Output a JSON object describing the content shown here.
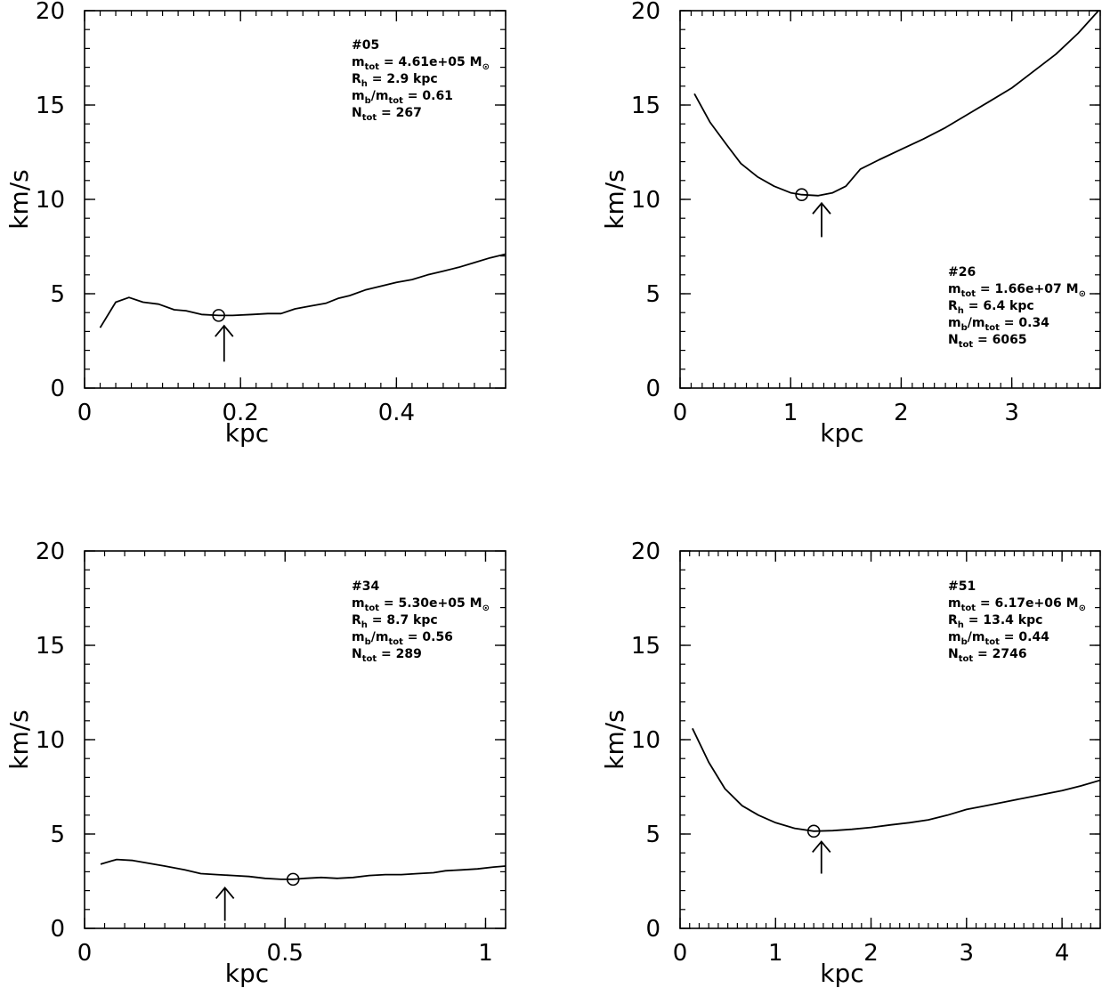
{
  "chart_data": [
    {
      "type": "line",
      "xlabel": "kpc",
      "ylabel": "km/s",
      "xlim": [
        0,
        0.54
      ],
      "ylim": [
        0,
        20
      ],
      "xticks": [
        0,
        0.2,
        0.4
      ],
      "xtick_labels": [
        "0",
        "0.2",
        "0.4"
      ],
      "xminor_step": 0.02,
      "yticks": [
        0,
        5,
        10,
        15,
        20
      ],
      "ytick_labels": [
        "0",
        "5",
        "10",
        "15",
        "20"
      ],
      "yminor_step": 1,
      "x": [
        0.02,
        0.04,
        0.057,
        0.075,
        0.095,
        0.115,
        0.13,
        0.15,
        0.172,
        0.19,
        0.215,
        0.235,
        0.252,
        0.27,
        0.29,
        0.31,
        0.325,
        0.34,
        0.36,
        0.38,
        0.4,
        0.42,
        0.44,
        0.46,
        0.48,
        0.5,
        0.52,
        0.54
      ],
      "y": [
        3.2,
        4.55,
        4.8,
        4.55,
        4.45,
        4.15,
        4.1,
        3.9,
        3.85,
        3.85,
        3.9,
        3.95,
        3.95,
        4.2,
        4.35,
        4.5,
        4.75,
        4.9,
        5.2,
        5.4,
        5.6,
        5.75,
        6.0,
        6.2,
        6.4,
        6.65,
        6.9,
        7.1
      ],
      "min_marker": {
        "x": 0.172,
        "y": 3.85
      },
      "arrow": {
        "x": 0.179,
        "y_tip": 3.3,
        "y_tail": 1.4
      },
      "annotation": {
        "id_label": "#05",
        "m_tot": "m",
        "m_tot_sub": "tot",
        "m_tot_value": " = 4.61e+05 M",
        "m_tot_unit_sub": "⊙",
        "rh": "R",
        "rh_sub": "h",
        "rh_value": " = 2.9 kpc",
        "ratio_num": "m",
        "ratio_num_sub": "b",
        "ratio_slash": "/m",
        "ratio_den_sub": "tot",
        "ratio_value": " = 0.61",
        "n": "N",
        "n_sub": "tot",
        "n_value": " = 267"
      },
      "annotation_position": "top-right"
    },
    {
      "type": "line",
      "xlabel": "kpc",
      "ylabel": "km/s",
      "xlim": [
        0,
        3.8
      ],
      "ylim": [
        0,
        20
      ],
      "xticks": [
        0,
        1,
        2,
        3
      ],
      "xtick_labels": [
        "0",
        "1",
        "2",
        "3"
      ],
      "xminor_step": 0.1,
      "yticks": [
        0,
        5,
        10,
        15,
        20
      ],
      "ytick_labels": [
        "0",
        "5",
        "10",
        "15",
        "20"
      ],
      "yminor_step": 1,
      "x": [
        0.13,
        0.27,
        0.42,
        0.55,
        0.7,
        0.85,
        1.0,
        1.1,
        1.25,
        1.38,
        1.5,
        1.63,
        1.8,
        2.0,
        2.2,
        2.4,
        2.6,
        2.8,
        3.0,
        3.2,
        3.4,
        3.6,
        3.8
      ],
      "y": [
        15.6,
        14.1,
        12.9,
        11.9,
        11.2,
        10.7,
        10.35,
        10.25,
        10.2,
        10.35,
        10.7,
        11.6,
        12.1,
        12.65,
        13.2,
        13.8,
        14.5,
        15.2,
        15.9,
        16.8,
        17.7,
        18.8,
        20.1
      ],
      "min_marker": {
        "x": 1.1,
        "y": 10.25
      },
      "arrow": {
        "x": 1.28,
        "y_tip": 9.8,
        "y_tail": 8.0
      },
      "annotation": {
        "id_label": "#26",
        "m_tot": "m",
        "m_tot_sub": "tot",
        "m_tot_value": " = 1.66e+07 M",
        "m_tot_unit_sub": "⊙",
        "rh": "R",
        "rh_sub": "h",
        "rh_value": " = 6.4 kpc",
        "ratio_num": "m",
        "ratio_num_sub": "b",
        "ratio_slash": "/m",
        "ratio_den_sub": "tot",
        "ratio_value": " = 0.34",
        "n": "N",
        "n_sub": "tot",
        "n_value": " = 6065"
      },
      "annotation_position": "bottom-right"
    },
    {
      "type": "line",
      "xlabel": "kpc",
      "ylabel": "km/s",
      "xlim": [
        0,
        1.05
      ],
      "ylim": [
        0,
        20
      ],
      "xticks": [
        0,
        0.5,
        1
      ],
      "xtick_labels": [
        "0",
        "0.5",
        "1"
      ],
      "xminor_step": 0.05,
      "yticks": [
        0,
        5,
        10,
        15,
        20
      ],
      "ytick_labels": [
        "0",
        "5",
        "10",
        "15",
        "20"
      ],
      "yminor_step": 1,
      "x": [
        0.04,
        0.08,
        0.12,
        0.16,
        0.2,
        0.25,
        0.29,
        0.33,
        0.37,
        0.41,
        0.45,
        0.49,
        0.52,
        0.55,
        0.59,
        0.63,
        0.67,
        0.71,
        0.75,
        0.79,
        0.83,
        0.87,
        0.9,
        0.94,
        0.98,
        1.02,
        1.05
      ],
      "y": [
        3.4,
        3.65,
        3.6,
        3.45,
        3.3,
        3.1,
        2.9,
        2.85,
        2.8,
        2.75,
        2.65,
        2.6,
        2.6,
        2.65,
        2.7,
        2.65,
        2.7,
        2.8,
        2.85,
        2.85,
        2.9,
        2.95,
        3.05,
        3.1,
        3.15,
        3.25,
        3.3
      ],
      "min_marker": {
        "x": 0.52,
        "y": 2.6
      },
      "arrow": {
        "x": 0.35,
        "y_tip": 2.15,
        "y_tail": 0.4
      },
      "annotation": {
        "id_label": "#34",
        "m_tot": "m",
        "m_tot_sub": "tot",
        "m_tot_value": " = 5.30e+05 M",
        "m_tot_unit_sub": "⊙",
        "rh": "R",
        "rh_sub": "h",
        "rh_value": " = 8.7 kpc",
        "ratio_num": "m",
        "ratio_num_sub": "b",
        "ratio_slash": "/m",
        "ratio_den_sub": "tot",
        "ratio_value": " = 0.56",
        "n": "N",
        "n_sub": "tot",
        "n_value": " = 289"
      },
      "annotation_position": "top-right"
    },
    {
      "type": "line",
      "xlabel": "kpc",
      "ylabel": "km/s",
      "xlim": [
        0,
        4.4
      ],
      "ylim": [
        0,
        20
      ],
      "xticks": [
        0,
        1,
        2,
        3,
        4
      ],
      "xtick_labels": [
        "0",
        "1",
        "2",
        "3",
        "4"
      ],
      "xminor_step": 0.1,
      "yticks": [
        0,
        5,
        10,
        15,
        20
      ],
      "ytick_labels": [
        "0",
        "5",
        "10",
        "15",
        "20"
      ],
      "yminor_step": 1,
      "x": [
        0.13,
        0.3,
        0.47,
        0.65,
        0.82,
        1.0,
        1.2,
        1.4,
        1.6,
        1.8,
        2.0,
        2.2,
        2.4,
        2.6,
        2.8,
        3.0,
        3.2,
        3.4,
        3.6,
        3.8,
        4.0,
        4.2,
        4.4
      ],
      "y": [
        10.6,
        8.8,
        7.4,
        6.5,
        6.0,
        5.6,
        5.3,
        5.15,
        5.18,
        5.25,
        5.35,
        5.48,
        5.6,
        5.75,
        6.0,
        6.3,
        6.5,
        6.7,
        6.9,
        7.1,
        7.3,
        7.55,
        7.85
      ],
      "min_marker": {
        "x": 1.4,
        "y": 5.15
      },
      "arrow": {
        "x": 1.48,
        "y_tip": 4.6,
        "y_tail": 2.9
      },
      "annotation": {
        "id_label": "#51",
        "m_tot": "m",
        "m_tot_sub": "tot",
        "m_tot_value": " = 6.17e+06 M",
        "m_tot_unit_sub": "⊙",
        "rh": "R",
        "rh_sub": "h",
        "rh_value": " = 13.4 kpc",
        "ratio_num": "m",
        "ratio_num_sub": "b",
        "ratio_slash": "/m",
        "ratio_den_sub": "tot",
        "ratio_value": " = 0.44",
        "n": "N",
        "n_sub": "tot",
        "n_value": " = 2746"
      },
      "annotation_position": "top-right"
    }
  ]
}
